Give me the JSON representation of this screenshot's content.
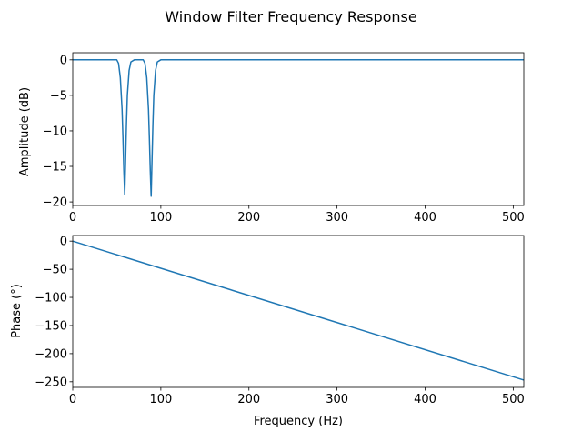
{
  "figure_title": "Window Filter Frequency Response",
  "colors": {
    "series": "#1f77b4"
  },
  "chart_data": [
    {
      "type": "line",
      "title": "",
      "xlabel": "",
      "ylabel": "Amplitude (dB)",
      "xlim": [
        0,
        512
      ],
      "ylim": [
        -20.5,
        1.0
      ],
      "xticks": [
        0,
        100,
        200,
        300,
        400,
        500
      ],
      "yticks": [
        0,
        -5,
        -10,
        -15,
        -20
      ],
      "grid": false,
      "series": [
        {
          "x": [
            0,
            50,
            52,
            54,
            56,
            57,
            58,
            59,
            60,
            61,
            62,
            64,
            66,
            70,
            80,
            82,
            84,
            86,
            87,
            88,
            89,
            90,
            91,
            92,
            94,
            96,
            100,
            200,
            300,
            400,
            512
          ],
          "values": [
            0,
            0,
            -0.5,
            -2.5,
            -7,
            -11,
            -15.5,
            -19,
            -14,
            -9,
            -5,
            -1.5,
            -0.3,
            0,
            0,
            -0.5,
            -2.5,
            -7,
            -11,
            -15.5,
            -19.2,
            -14,
            -9,
            -5,
            -1.5,
            -0.3,
            0,
            0,
            0,
            0,
            0
          ]
        }
      ]
    },
    {
      "type": "line",
      "title": "",
      "xlabel": "Frequency (Hz)",
      "ylabel": "Phase (°)",
      "xlim": [
        0,
        512
      ],
      "ylim": [
        -260,
        10
      ],
      "xticks": [
        0,
        100,
        200,
        300,
        400,
        500
      ],
      "yticks": [
        0,
        -50,
        -100,
        -150,
        -200,
        -250
      ],
      "grid": false,
      "series": [
        {
          "x": [
            0,
            512
          ],
          "values": [
            0,
            -247
          ]
        }
      ]
    }
  ]
}
